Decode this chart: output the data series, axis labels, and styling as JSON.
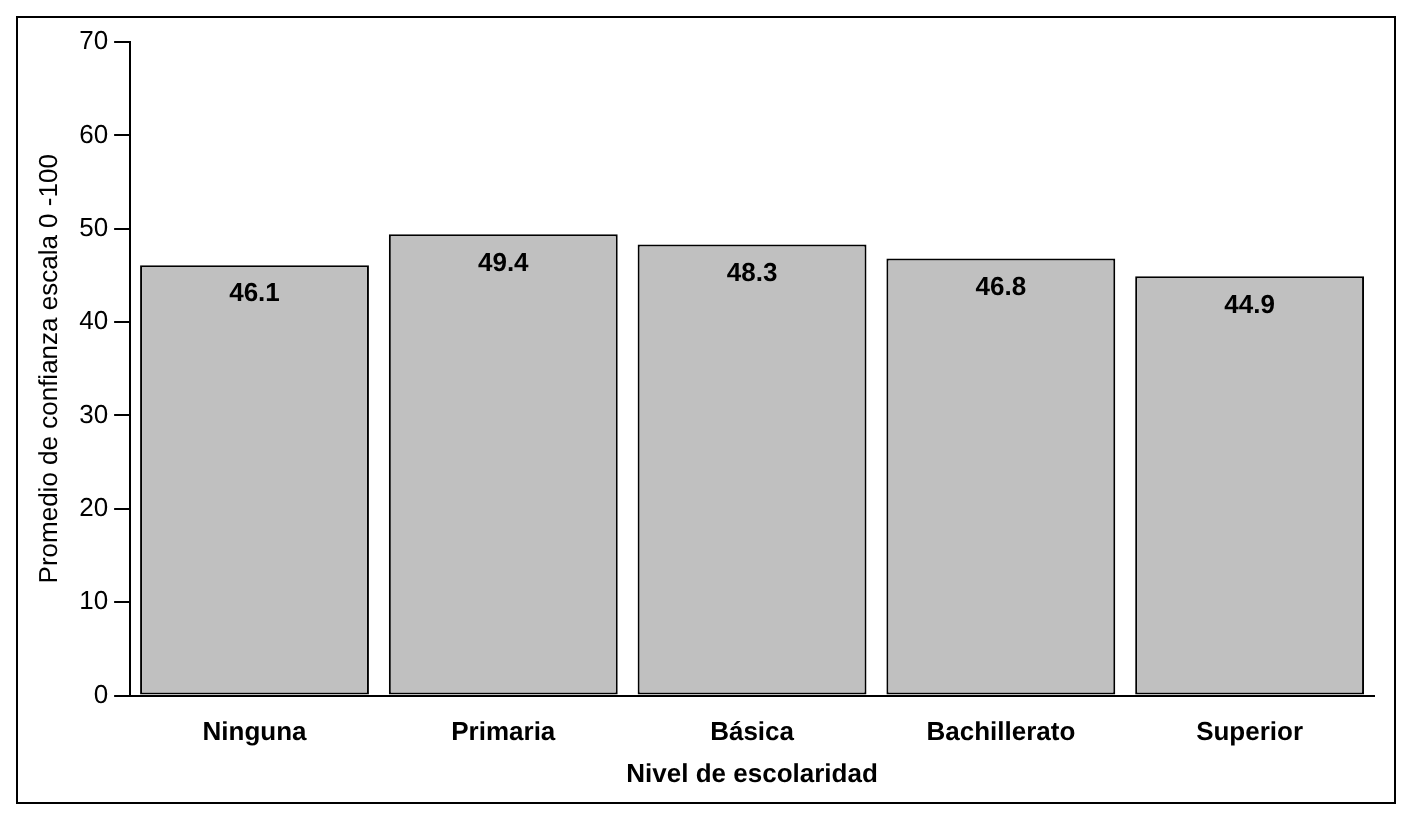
{
  "chart_data": {
    "type": "bar",
    "xlabel": "Nivel de escolaridad",
    "ylabel": "Promedio de confianza escala 0 -100",
    "categories": [
      "Ninguna",
      "Primaria",
      "Básica",
      "Bachillerato",
      "Superior"
    ],
    "values": [
      46.1,
      49.4,
      48.3,
      46.8,
      44.9
    ],
    "color": "#c0c0c0",
    "ylim": [
      0,
      70
    ],
    "yticks": [
      0,
      10,
      20,
      30,
      40,
      50,
      60,
      70
    ],
    "grid": false,
    "legend": false,
    "data_labels": true
  }
}
